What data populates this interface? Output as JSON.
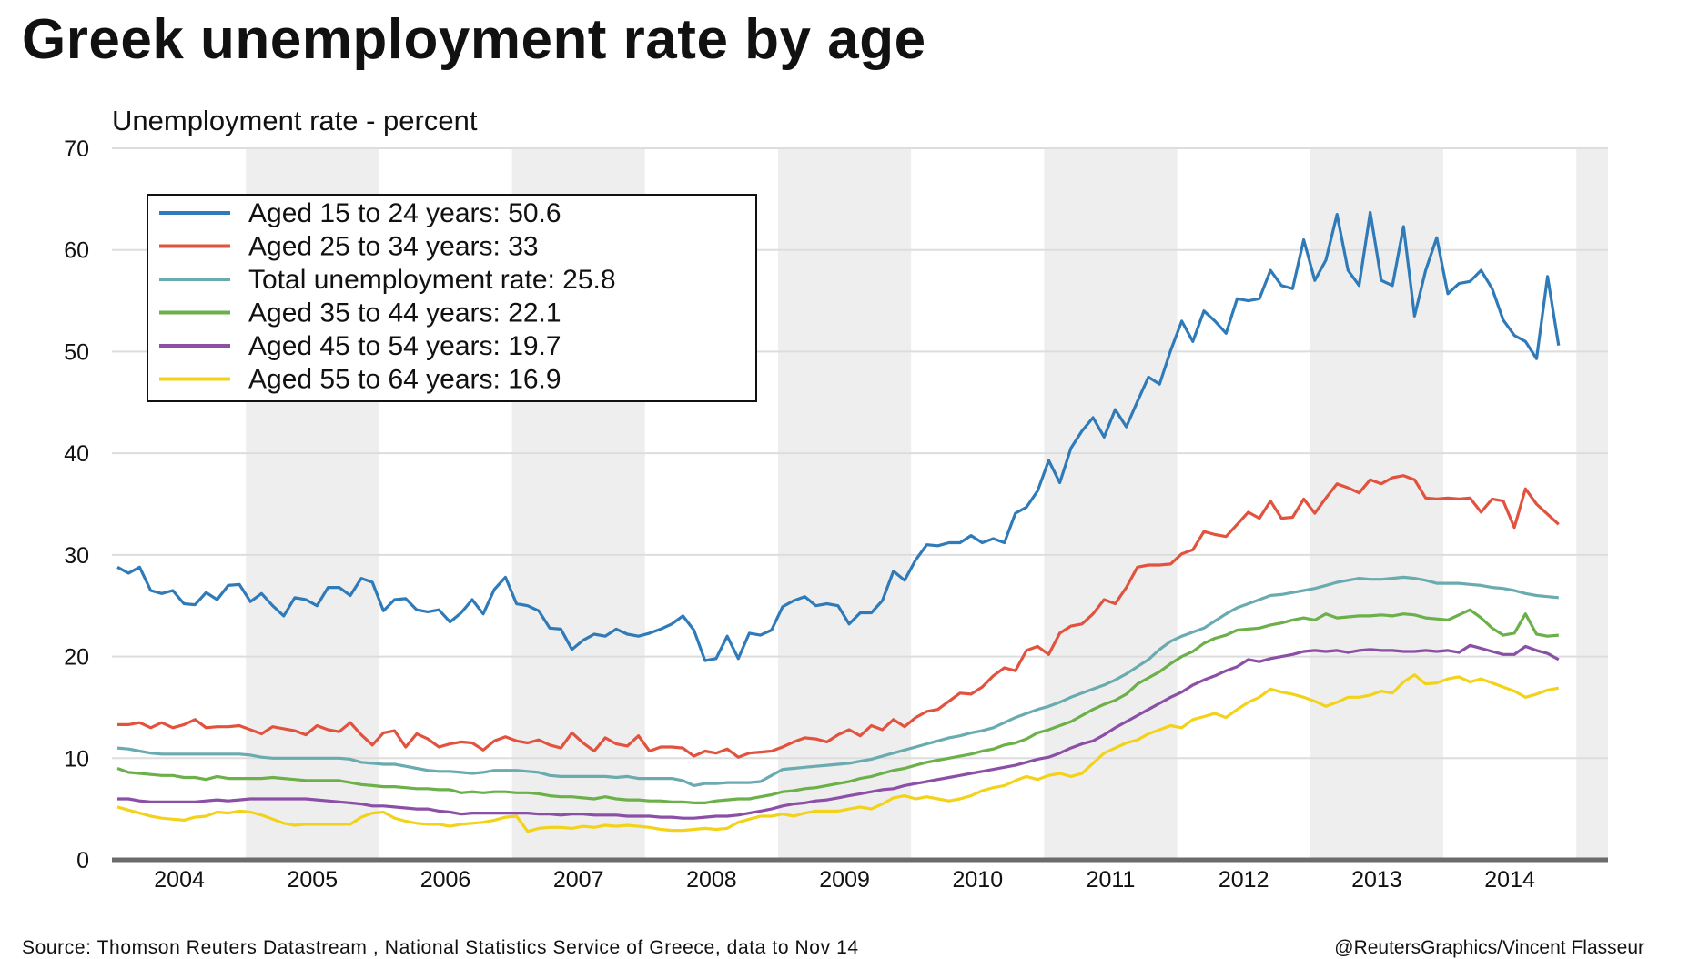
{
  "chart_data": {
    "type": "line",
    "title": "Greek unemployment rate by age",
    "ylabel": "Unemployment rate - percent",
    "xlabel": "",
    "ylim": [
      0,
      70
    ],
    "yticks": [
      "0",
      "10",
      "20",
      "30",
      "40",
      "50",
      "60",
      "70"
    ],
    "xticks": [
      "2004",
      "2005",
      "2006",
      "2007",
      "2008",
      "2009",
      "2010",
      "2011",
      "2012",
      "2013",
      "2014"
    ],
    "x_start": "2004-01",
    "frequency": "monthly",
    "grid": true,
    "alternating_year_bands": true,
    "legend_position": "top-left",
    "series": [
      {
        "name": "Aged 15 to 24 years: 50.6",
        "color": "#2f7ab8",
        "values": [
          28.8,
          28.2,
          28.8,
          26.5,
          26.2,
          26.5,
          25.2,
          25.1,
          26.3,
          25.6,
          27,
          27.1,
          25.4,
          26.2,
          25,
          24,
          25.8,
          25.6,
          25,
          26.8,
          26.8,
          26,
          27.7,
          27.3,
          24.5,
          25.6,
          25.7,
          24.6,
          24.4,
          24.6,
          23.4,
          24.3,
          25.6,
          24.2,
          26.6,
          27.8,
          25.2,
          25,
          24.5,
          22.8,
          22.7,
          20.7,
          21.6,
          22.2,
          22,
          22.7,
          22.2,
          22,
          22.3,
          22.7,
          23.2,
          24,
          22.6,
          19.6,
          19.8,
          22,
          19.8,
          22.3,
          22.1,
          22.6,
          24.9,
          25.5,
          25.9,
          25,
          25.2,
          25,
          23.2,
          24.3,
          24.3,
          25.5,
          28.4,
          27.5,
          29.5,
          31,
          30.9,
          31.2,
          31.2,
          31.9,
          31.2,
          31.6,
          31.2,
          34.1,
          34.7,
          36.3,
          39.3,
          37.1,
          40.5,
          42.2,
          43.5,
          41.6,
          44.3,
          42.6,
          45.1,
          47.5,
          46.8,
          50.1,
          53,
          51,
          54,
          53,
          51.8,
          55.2,
          55,
          55.2,
          58,
          56.5,
          56.2,
          61,
          57,
          59,
          63.5,
          58,
          56.5,
          63.7,
          57,
          56.5,
          62.3,
          53.5,
          58,
          61.2,
          55.7,
          56.7,
          56.9,
          58,
          56.2,
          53.1,
          51.6,
          51,
          49.3,
          57.4,
          50.6
        ]
      },
      {
        "name": "Aged 25 to 34 years: 33",
        "color": "#e2533f",
        "values": [
          13.3,
          13.3,
          13.5,
          13,
          13.5,
          13,
          13.3,
          13.8,
          13,
          13.1,
          13.1,
          13.2,
          12.8,
          12.4,
          13.1,
          12.9,
          12.7,
          12.3,
          13.2,
          12.8,
          12.6,
          13.5,
          12.3,
          11.3,
          12.5,
          12.7,
          11.1,
          12.4,
          11.9,
          11.1,
          11.4,
          11.6,
          11.5,
          10.8,
          11.7,
          12.1,
          11.7,
          11.5,
          11.8,
          11.3,
          11,
          12.5,
          11.5,
          10.7,
          12,
          11.4,
          11.2,
          12.2,
          10.7,
          11.1,
          11.1,
          11,
          10.2,
          10.7,
          10.5,
          10.9,
          10.1,
          10.5,
          10.6,
          10.7,
          11.1,
          11.6,
          12,
          11.9,
          11.6,
          12.3,
          12.8,
          12.2,
          13.2,
          12.8,
          13.8,
          13.1,
          14,
          14.6,
          14.8,
          15.6,
          16.4,
          16.3,
          17,
          18.1,
          18.9,
          18.6,
          20.6,
          21,
          20.2,
          22.3,
          23,
          23.2,
          24.2,
          25.6,
          25.2,
          26.8,
          28.8,
          29,
          29,
          29.1,
          30.1,
          30.5,
          32.3,
          32,
          31.8,
          33,
          34.2,
          33.6,
          35.3,
          33.6,
          33.7,
          35.5,
          34.1,
          35.6,
          37,
          36.6,
          36.1,
          37.4,
          37,
          37.6,
          37.8,
          37.4,
          35.6,
          35.5,
          35.6,
          35.5,
          35.6,
          34.2,
          35.5,
          35.3,
          32.7,
          36.5,
          35,
          34,
          33
        ]
      },
      {
        "name": "Total unemployment rate: 25.8",
        "color": "#6aabb0",
        "values": [
          11,
          10.9,
          10.7,
          10.5,
          10.4,
          10.4,
          10.4,
          10.4,
          10.4,
          10.4,
          10.4,
          10.4,
          10.3,
          10.1,
          10,
          10,
          10,
          10,
          10,
          10,
          10,
          9.9,
          9.6,
          9.5,
          9.4,
          9.4,
          9.2,
          9,
          8.8,
          8.7,
          8.7,
          8.6,
          8.5,
          8.6,
          8.8,
          8.8,
          8.8,
          8.7,
          8.6,
          8.3,
          8.2,
          8.2,
          8.2,
          8.2,
          8.2,
          8.1,
          8.2,
          8,
          8,
          8,
          8,
          7.8,
          7.3,
          7.5,
          7.5,
          7.6,
          7.6,
          7.6,
          7.7,
          8.3,
          8.9,
          9,
          9.1,
          9.2,
          9.3,
          9.4,
          9.5,
          9.7,
          9.9,
          10.2,
          10.5,
          10.8,
          11.1,
          11.4,
          11.7,
          12,
          12.2,
          12.5,
          12.7,
          13,
          13.5,
          14,
          14.4,
          14.8,
          15.1,
          15.5,
          16,
          16.4,
          16.8,
          17.2,
          17.7,
          18.3,
          19,
          19.7,
          20.7,
          21.5,
          22,
          22.4,
          22.8,
          23.5,
          24.2,
          24.8,
          25.2,
          25.6,
          26,
          26.1,
          26.3,
          26.5,
          26.7,
          27,
          27.3,
          27.5,
          27.7,
          27.6,
          27.6,
          27.7,
          27.8,
          27.7,
          27.5,
          27.2,
          27.2,
          27.2,
          27.1,
          27,
          26.8,
          26.7,
          26.5,
          26.2,
          26,
          25.9,
          25.8
        ]
      },
      {
        "name": "Aged 35 to 44 years: 22.1",
        "color": "#6cb04a",
        "values": [
          9,
          8.6,
          8.5,
          8.4,
          8.3,
          8.3,
          8.1,
          8.1,
          7.9,
          8.2,
          8,
          8,
          8,
          8,
          8.1,
          8,
          7.9,
          7.8,
          7.8,
          7.8,
          7.8,
          7.6,
          7.4,
          7.3,
          7.2,
          7.2,
          7.1,
          7,
          7,
          6.9,
          6.9,
          6.6,
          6.7,
          6.6,
          6.7,
          6.7,
          6.6,
          6.6,
          6.5,
          6.3,
          6.2,
          6.2,
          6.1,
          6,
          6.2,
          6,
          5.9,
          5.9,
          5.8,
          5.8,
          5.7,
          5.7,
          5.6,
          5.6,
          5.8,
          5.9,
          6,
          6,
          6.2,
          6.4,
          6.7,
          6.8,
          7,
          7.1,
          7.3,
          7.5,
          7.7,
          8,
          8.2,
          8.5,
          8.8,
          9,
          9.3,
          9.6,
          9.8,
          10,
          10.2,
          10.4,
          10.7,
          10.9,
          11.3,
          11.5,
          11.9,
          12.5,
          12.8,
          13.2,
          13.6,
          14.2,
          14.8,
          15.3,
          15.7,
          16.3,
          17.3,
          17.9,
          18.5,
          19.3,
          20,
          20.5,
          21.3,
          21.8,
          22.1,
          22.6,
          22.7,
          22.8,
          23.1,
          23.3,
          23.6,
          23.8,
          23.6,
          24.2,
          23.8,
          23.9,
          24,
          24,
          24.1,
          24,
          24.2,
          24.1,
          23.8,
          23.7,
          23.6,
          24.1,
          24.6,
          23.8,
          22.8,
          22.1,
          22.3,
          24.2,
          22.2,
          22,
          22.1
        ]
      },
      {
        "name": "Aged 45 to 54 years: 19.7",
        "color": "#8b4fa6",
        "values": [
          6,
          6,
          5.8,
          5.7,
          5.7,
          5.7,
          5.7,
          5.7,
          5.8,
          5.9,
          5.8,
          5.9,
          6,
          6,
          6,
          6,
          6,
          6,
          5.9,
          5.8,
          5.7,
          5.6,
          5.5,
          5.3,
          5.3,
          5.2,
          5.1,
          5,
          5,
          4.8,
          4.7,
          4.5,
          4.6,
          4.6,
          4.6,
          4.6,
          4.6,
          4.6,
          4.5,
          4.5,
          4.4,
          4.5,
          4.5,
          4.4,
          4.4,
          4.4,
          4.3,
          4.3,
          4.3,
          4.2,
          4.2,
          4.1,
          4.1,
          4.2,
          4.3,
          4.3,
          4.4,
          4.6,
          4.8,
          5,
          5.3,
          5.5,
          5.6,
          5.8,
          5.9,
          6.1,
          6.3,
          6.5,
          6.7,
          6.9,
          7,
          7.3,
          7.5,
          7.7,
          7.9,
          8.1,
          8.3,
          8.5,
          8.7,
          8.9,
          9.1,
          9.3,
          9.6,
          9.9,
          10.1,
          10.5,
          11,
          11.4,
          11.7,
          12.3,
          13,
          13.6,
          14.2,
          14.8,
          15.4,
          16,
          16.5,
          17.2,
          17.7,
          18.1,
          18.6,
          19,
          19.7,
          19.5,
          19.8,
          20,
          20.2,
          20.5,
          20.6,
          20.5,
          20.6,
          20.4,
          20.6,
          20.7,
          20.6,
          20.6,
          20.5,
          20.5,
          20.6,
          20.5,
          20.6,
          20.4,
          21.1,
          20.8,
          20.5,
          20.2,
          20.2,
          21,
          20.6,
          20.3,
          19.7
        ]
      },
      {
        "name": "Aged 55 to 64 years: 16.9",
        "color": "#f2d31a",
        "values": [
          5.2,
          4.9,
          4.6,
          4.3,
          4.1,
          4,
          3.9,
          4.2,
          4.3,
          4.7,
          4.6,
          4.8,
          4.7,
          4.4,
          4,
          3.6,
          3.4,
          3.5,
          3.5,
          3.5,
          3.5,
          3.5,
          4.2,
          4.6,
          4.7,
          4.1,
          3.8,
          3.6,
          3.5,
          3.5,
          3.3,
          3.5,
          3.6,
          3.7,
          3.9,
          4.2,
          4.3,
          2.8,
          3.1,
          3.2,
          3.2,
          3.1,
          3.3,
          3.2,
          3.4,
          3.3,
          3.4,
          3.3,
          3.2,
          3,
          2.9,
          2.9,
          3,
          3.1,
          3,
          3.1,
          3.7,
          4,
          4.3,
          4.3,
          4.5,
          4.3,
          4.6,
          4.8,
          4.8,
          4.8,
          5,
          5.2,
          5,
          5.5,
          6.1,
          6.3,
          6,
          6.2,
          6,
          5.8,
          6,
          6.3,
          6.8,
          7.1,
          7.3,
          7.8,
          8.2,
          7.9,
          8.3,
          8.5,
          8.2,
          8.5,
          9.5,
          10.5,
          11,
          11.5,
          11.8,
          12.4,
          12.8,
          13.2,
          13,
          13.8,
          14.1,
          14.4,
          14,
          14.8,
          15.5,
          16,
          16.8,
          16.5,
          16.3,
          16,
          15.6,
          15.1,
          15.5,
          16,
          16,
          16.2,
          16.6,
          16.4,
          17.5,
          18.2,
          17.3,
          17.4,
          17.8,
          18,
          17.5,
          17.8,
          17.4,
          17,
          16.6,
          16,
          16.3,
          16.7,
          16.9
        ]
      }
    ]
  },
  "footer": {
    "source": "Source: Thomson Reuters Datastream , National Statistics Service of Greece, data to Nov 14",
    "credit": "@ReutersGraphics/Vincent Flasseur"
  }
}
